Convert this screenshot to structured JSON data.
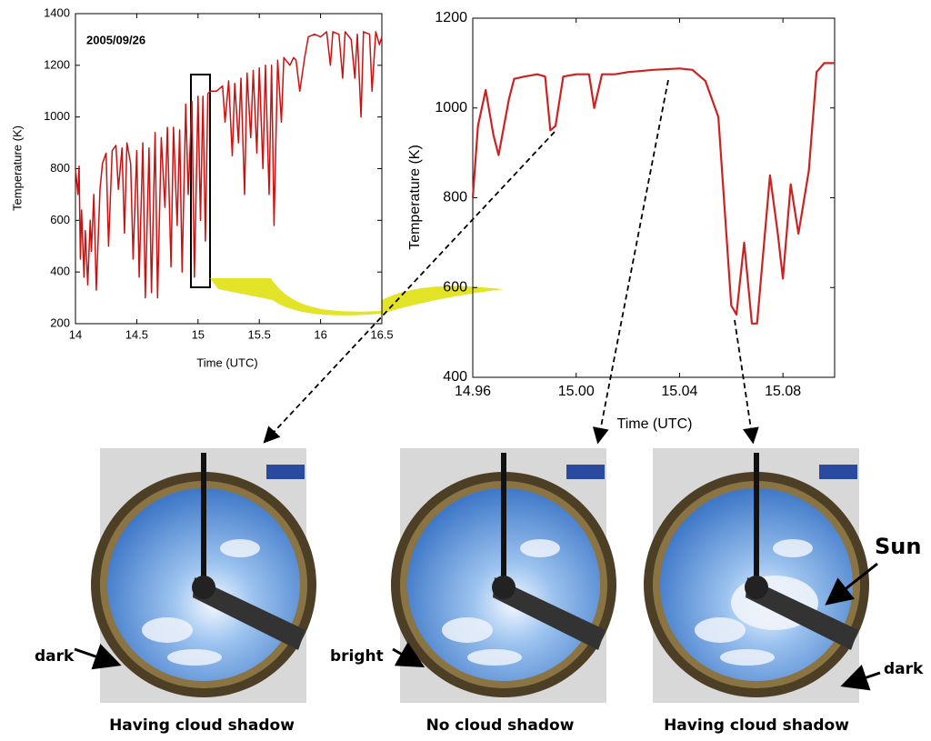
{
  "chart_data": [
    {
      "type": "line",
      "annotation": "2005/09/26",
      "xlabel": "Time (UTC)",
      "ylabel": "Temperature (K)",
      "color": "#cc1111",
      "x": [
        14.0,
        14.02,
        14.03,
        14.04,
        14.05,
        14.07,
        14.08,
        14.1,
        14.12,
        14.13,
        14.15,
        14.17,
        14.2,
        14.22,
        14.25,
        14.27,
        14.3,
        14.33,
        14.35,
        14.38,
        14.4,
        14.42,
        14.45,
        14.47,
        14.5,
        14.52,
        14.55,
        14.57,
        14.6,
        14.62,
        14.65,
        14.67,
        14.7,
        14.73,
        14.75,
        14.78,
        14.8,
        14.83,
        14.85,
        14.87,
        14.9,
        14.92,
        14.95,
        14.97,
        15.0,
        15.02,
        15.04,
        15.06,
        15.08,
        15.1,
        15.15,
        15.2,
        15.22,
        15.25,
        15.28,
        15.3,
        15.33,
        15.35,
        15.38,
        15.4,
        15.43,
        15.45,
        15.48,
        15.5,
        15.53,
        15.55,
        15.58,
        15.6,
        15.62,
        15.65,
        15.68,
        15.7,
        15.75,
        15.78,
        15.8,
        15.83,
        15.87,
        15.9,
        15.95,
        16.0,
        16.05,
        16.08,
        16.1,
        16.15,
        16.18,
        16.2,
        16.25,
        16.28,
        16.3,
        16.33,
        16.35,
        16.4,
        16.42,
        16.45,
        16.48,
        16.5
      ],
      "values": [
        800,
        700,
        810,
        450,
        640,
        380,
        560,
        350,
        600,
        480,
        700,
        330,
        720,
        820,
        860,
        500,
        870,
        890,
        720,
        880,
        550,
        900,
        820,
        450,
        870,
        380,
        900,
        300,
        880,
        320,
        940,
        300,
        920,
        650,
        960,
        420,
        960,
        580,
        950,
        400,
        1050,
        700,
        1060,
        380,
        1080,
        600,
        1080,
        520,
        1090,
        1100,
        1100,
        1120,
        980,
        1140,
        850,
        1130,
        900,
        1150,
        700,
        1170,
        920,
        1180,
        860,
        1190,
        800,
        1200,
        700,
        1200,
        580,
        1220,
        980,
        1230,
        1200,
        1230,
        1220,
        1100,
        1230,
        1310,
        1320,
        1310,
        1330,
        1200,
        1330,
        1320,
        1150,
        1330,
        1300,
        1150,
        1320,
        1000,
        1330,
        1320,
        1100,
        1330,
        1280,
        1310
      ],
      "xlim": [
        14,
        16.5
      ],
      "xticks": [
        14,
        14.5,
        15,
        15.5,
        16,
        16.5
      ],
      "ylim": [
        200,
        1400
      ],
      "yticks": [
        200,
        400,
        600,
        800,
        1000,
        1200,
        1400
      ]
    },
    {
      "type": "line",
      "xlabel": "Time (UTC)",
      "ylabel": "Temperature (K)",
      "color": "#cc2222",
      "x": [
        14.96,
        14.962,
        14.965,
        14.968,
        14.97,
        14.974,
        14.976,
        14.98,
        14.985,
        14.988,
        14.99,
        14.992,
        14.995,
        15.0,
        15.005,
        15.007,
        15.01,
        15.015,
        15.02,
        15.03,
        15.04,
        15.045,
        15.05,
        15.055,
        15.06,
        15.062,
        15.065,
        15.068,
        15.07,
        15.075,
        15.078,
        15.08,
        15.083,
        15.086,
        15.09,
        15.093,
        15.096,
        15.1
      ],
      "values": [
        800,
        960,
        1040,
        940,
        895,
        1020,
        1065,
        1070,
        1075,
        1070,
        950,
        960,
        1070,
        1075,
        1075,
        1000,
        1075,
        1075,
        1080,
        1085,
        1088,
        1085,
        1060,
        980,
        560,
        540,
        700,
        520,
        520,
        850,
        720,
        620,
        830,
        720,
        860,
        1080,
        1100,
        1100
      ],
      "xlim": [
        14.96,
        15.1
      ],
      "xticks": [
        14.96,
        {
          "value": 15,
          "label": "15.00"
        },
        15.04,
        15.08
      ],
      "ylim": [
        400,
        1200
      ],
      "yticks": [
        400,
        600,
        800,
        1000,
        1200
      ]
    }
  ],
  "images": [
    {
      "caption": "Having cloud shadow",
      "label": "dark"
    },
    {
      "caption": "No cloud shadow",
      "label": "bright"
    },
    {
      "caption": "Having cloud shadow",
      "label": "dark"
    }
  ],
  "sun_label": "Sun"
}
